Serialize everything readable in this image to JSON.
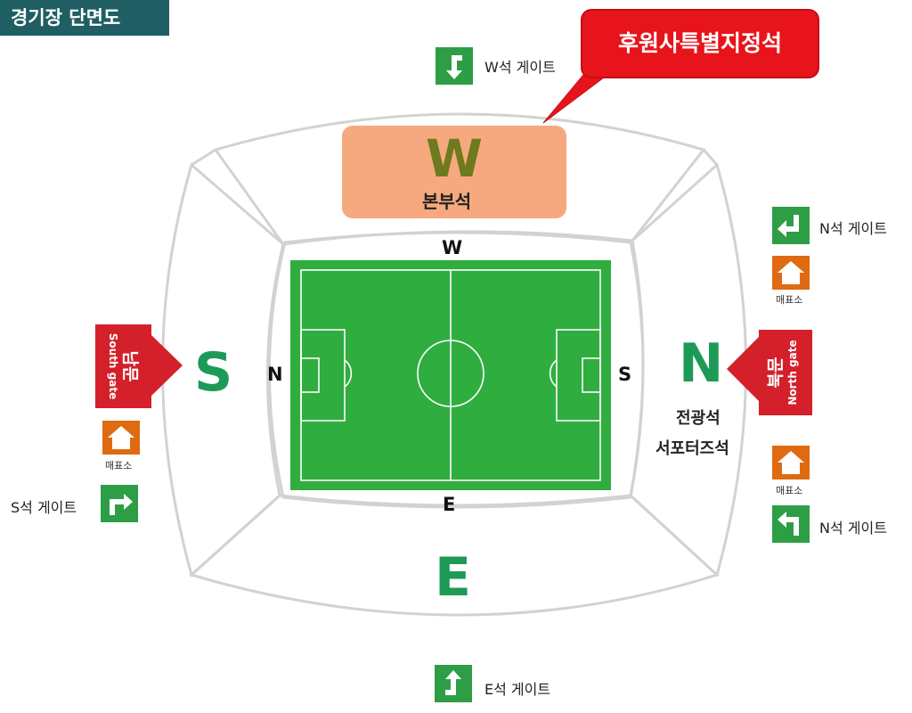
{
  "header": {
    "title": "경기장 단면도"
  },
  "callout": {
    "label": "후원사특별지정석"
  },
  "stands": {
    "west": {
      "letter": "W",
      "name": "본부석"
    },
    "east": {
      "letter": "E"
    },
    "south": {
      "letter": "S"
    },
    "north": {
      "letter": "N",
      "name_line1": "전광석",
      "name_line2": "서포터즈석"
    }
  },
  "pitch_labels": {
    "top": "W",
    "bottom": "E",
    "left": "N",
    "right": "S"
  },
  "gates": {
    "w_gate": "W석 게이트",
    "n_gate_top": "N석 게이트",
    "n_gate_bottom": "N석 게이트",
    "s_gate": "S석 게이트",
    "e_gate": "E석 게이트"
  },
  "entrances": {
    "south": {
      "korean": "남문",
      "english": "South gate"
    },
    "north": {
      "korean": "북문",
      "english": "North gate"
    }
  },
  "ticket_office": {
    "label": "매표소"
  },
  "colors": {
    "pitch": "#2fad3f",
    "stand_letter": "#1e9a57",
    "gate_icon": "#2e9e46",
    "ticket_icon": "#e06a12",
    "callout": "#e8141b",
    "entrance_arrow": "#d3202b",
    "header_bg": "#1f5f63",
    "vip_block": "#f6a97e"
  }
}
